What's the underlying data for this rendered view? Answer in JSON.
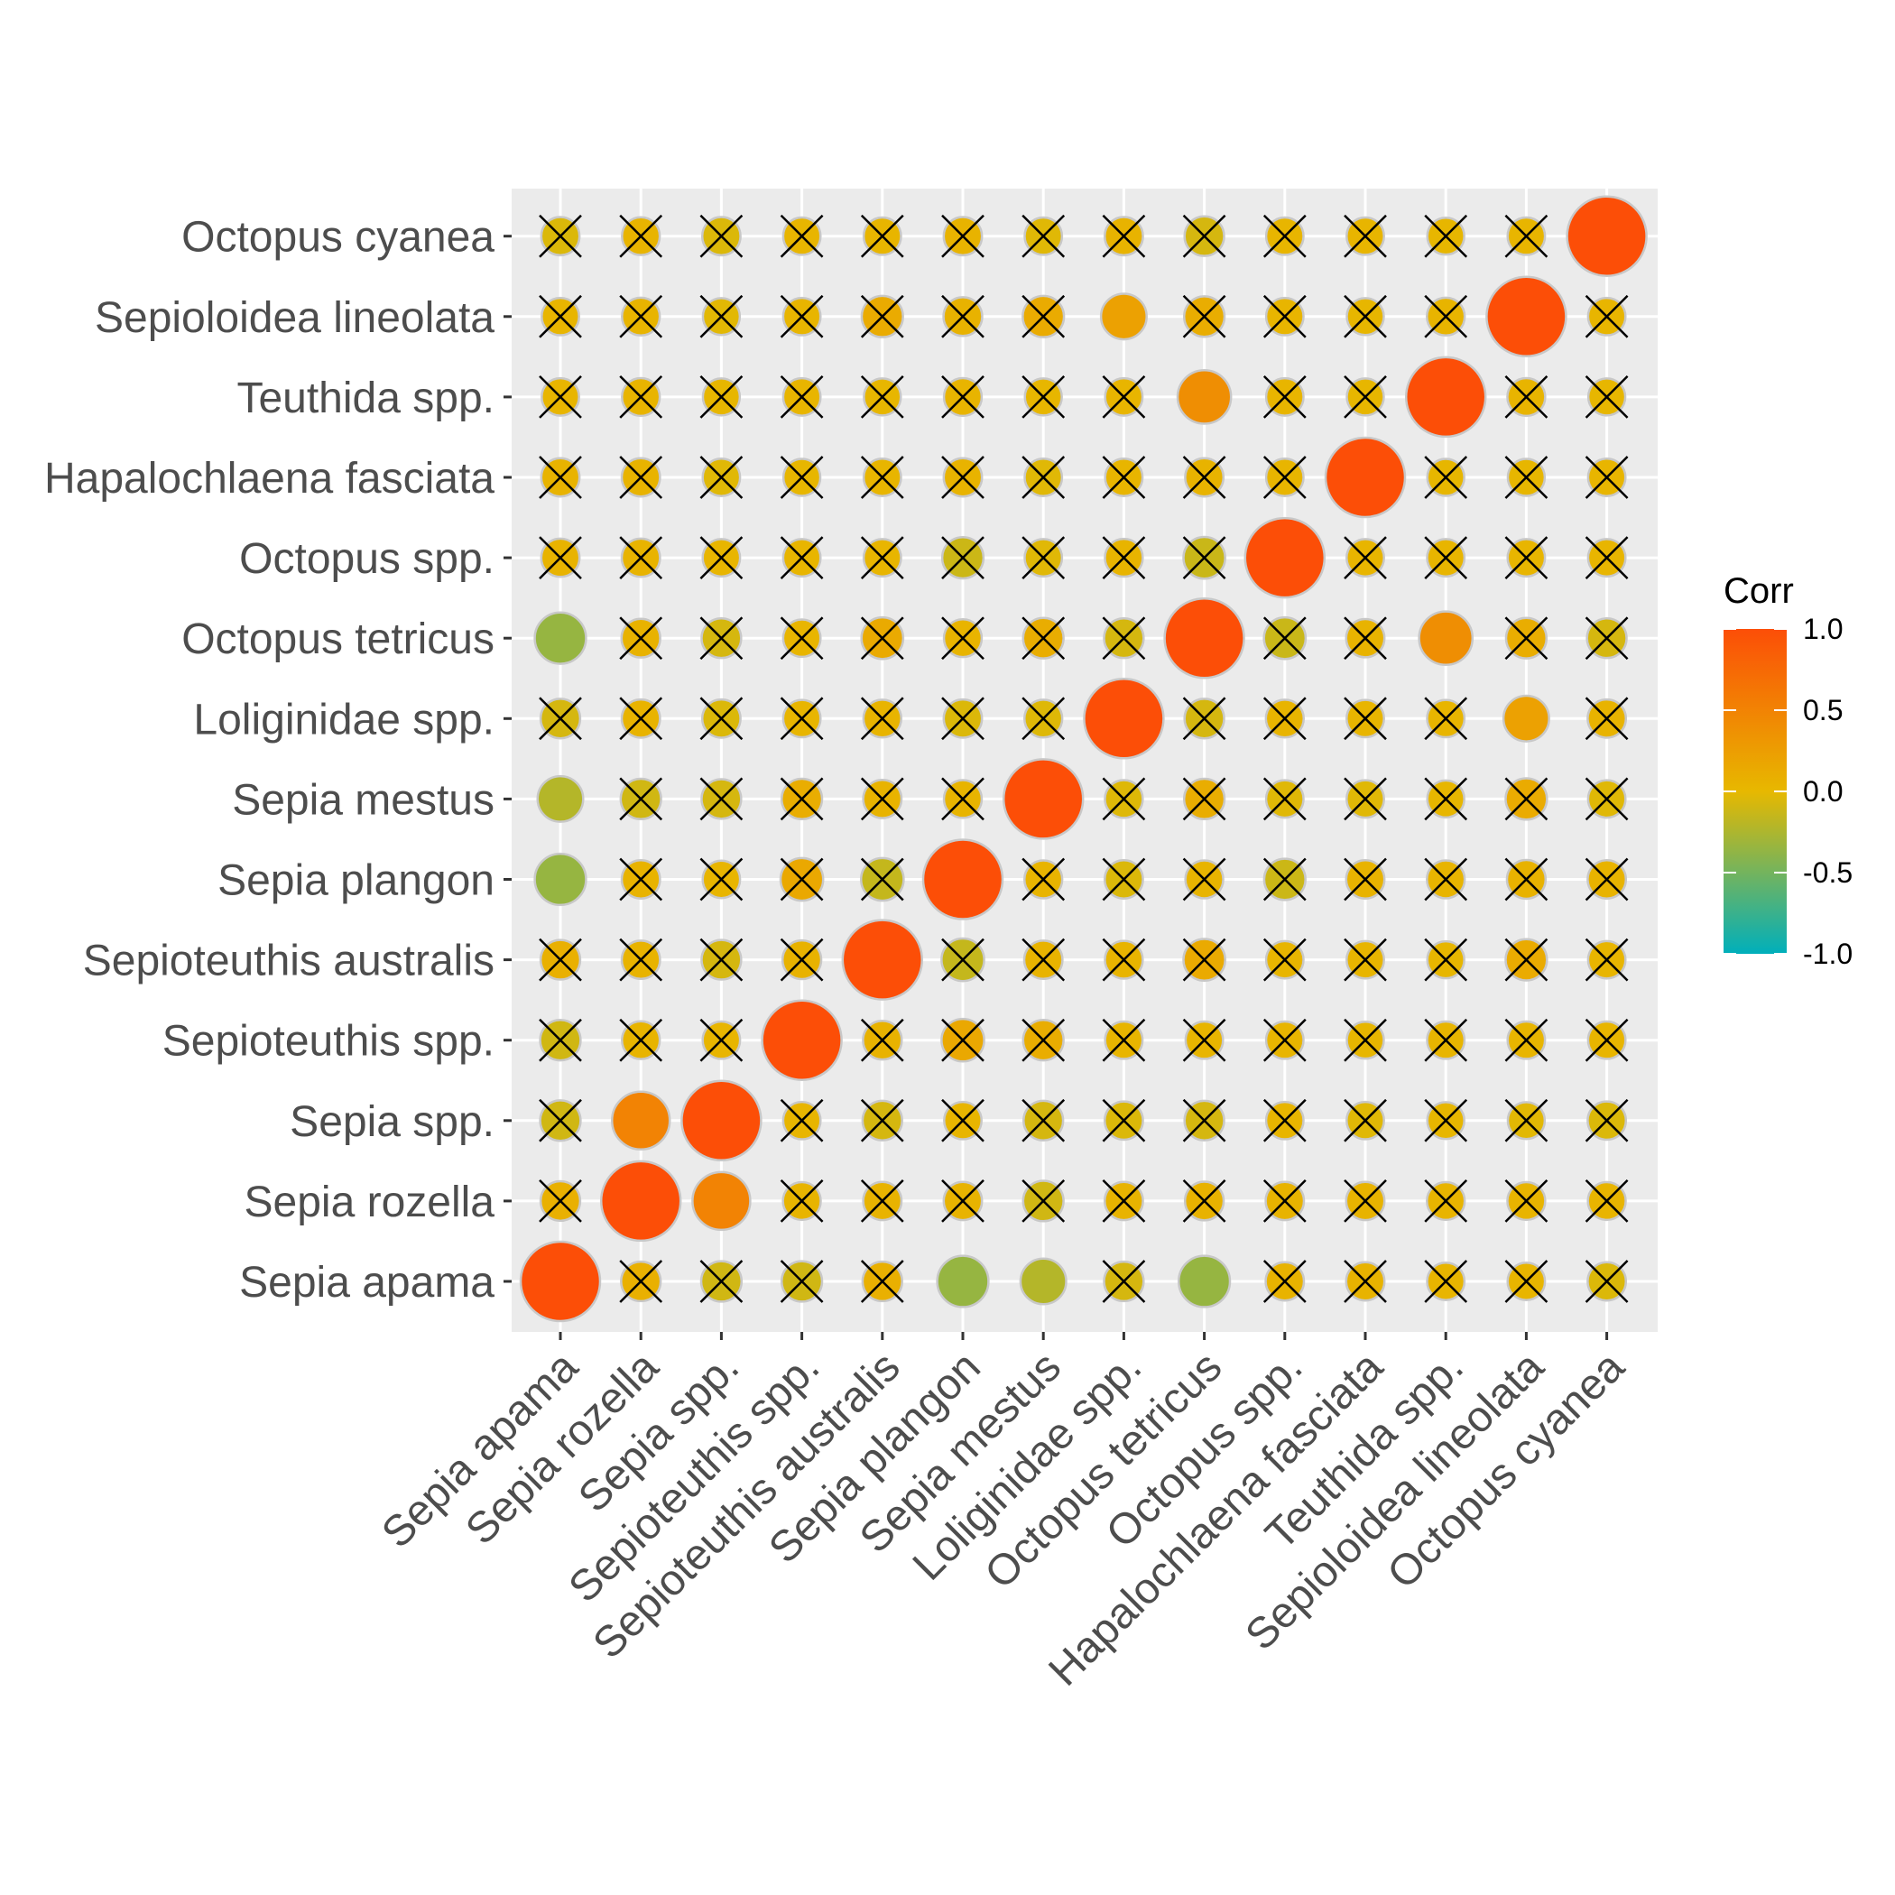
{
  "chart_data": {
    "type": "heatmap",
    "title": "",
    "xlabel": "",
    "ylabel": "",
    "variables": [
      "Sepia apama",
      "Sepia rozella",
      "Sepia spp.",
      "Sepioteuthis spp.",
      "Sepioteuthis australis",
      "Sepia plangon",
      "Sepia mestus",
      "Loliginidae spp.",
      "Octopus tetricus",
      "Octopus spp.",
      "Hapalochlaena fasciata",
      "Teuthida spp.",
      "Sepioloidea lineolata",
      "Octopus cyanea"
    ],
    "matrix": [
      [
        1.0,
        0.08,
        -0.1,
        -0.1,
        0.08,
        -0.35,
        -0.22,
        -0.08,
        -0.35,
        0.05,
        0.05,
        0.03,
        0.03,
        -0.05
      ],
      [
        0.08,
        1.0,
        0.5,
        0.04,
        0.05,
        0.05,
        -0.1,
        0.05,
        0.06,
        0.05,
        0.05,
        0.04,
        0.04,
        0.04
      ],
      [
        -0.1,
        0.5,
        1.0,
        0.03,
        -0.08,
        0.03,
        -0.08,
        -0.05,
        -0.08,
        0.03,
        -0.03,
        0.02,
        -0.02,
        -0.05
      ],
      [
        -0.1,
        0.04,
        0.03,
        1.0,
        0.06,
        0.15,
        0.1,
        0.03,
        0.03,
        0.03,
        0.02,
        0.03,
        0.03,
        0.03
      ],
      [
        0.08,
        0.05,
        -0.08,
        0.06,
        1.0,
        -0.15,
        0.05,
        0.04,
        0.13,
        0.03,
        0.03,
        0.02,
        0.12,
        0.03
      ],
      [
        -0.35,
        0.05,
        0.03,
        0.15,
        -0.15,
        1.0,
        0.04,
        -0.05,
        0.04,
        -0.12,
        0.05,
        0.04,
        0.06,
        0.05
      ],
      [
        -0.22,
        -0.1,
        -0.08,
        0.1,
        0.05,
        0.04,
        1.0,
        -0.04,
        0.1,
        -0.03,
        -0.03,
        0.02,
        0.12,
        -0.03
      ],
      [
        -0.08,
        0.05,
        -0.05,
        0.03,
        0.04,
        -0.05,
        -0.04,
        1.0,
        -0.08,
        0.04,
        0.03,
        0.03,
        0.22,
        0.05
      ],
      [
        -0.35,
        0.06,
        -0.08,
        0.03,
        0.13,
        0.04,
        0.1,
        -0.08,
        1.0,
        -0.13,
        0.05,
        0.4,
        0.1,
        -0.08
      ],
      [
        0.05,
        0.05,
        0.03,
        0.03,
        0.03,
        -0.12,
        -0.03,
        0.04,
        -0.13,
        1.0,
        0.03,
        0.03,
        0.03,
        0.03
      ],
      [
        0.05,
        0.05,
        -0.03,
        0.02,
        0.03,
        0.05,
        -0.03,
        0.03,
        0.05,
        0.03,
        1.0,
        0.02,
        0.02,
        0.03
      ],
      [
        0.03,
        0.04,
        0.02,
        0.03,
        0.02,
        0.04,
        0.02,
        0.03,
        0.4,
        0.03,
        0.02,
        1.0,
        0.04,
        0.02
      ],
      [
        0.03,
        0.04,
        -0.02,
        0.03,
        0.12,
        0.06,
        0.12,
        0.22,
        0.1,
        0.03,
        0.02,
        0.04,
        1.0,
        0.03
      ],
      [
        -0.05,
        0.04,
        -0.05,
        0.03,
        0.03,
        0.05,
        -0.03,
        0.05,
        -0.08,
        0.03,
        0.03,
        0.02,
        0.03,
        1.0
      ]
    ],
    "insignificant": [
      [
        false,
        true,
        true,
        true,
        true,
        false,
        false,
        true,
        false,
        true,
        true,
        true,
        true,
        true
      ],
      [
        true,
        false,
        false,
        true,
        true,
        true,
        true,
        true,
        true,
        true,
        true,
        true,
        true,
        true
      ],
      [
        true,
        false,
        false,
        true,
        true,
        true,
        true,
        true,
        true,
        true,
        true,
        true,
        true,
        true
      ],
      [
        true,
        true,
        true,
        false,
        true,
        true,
        true,
        true,
        true,
        true,
        true,
        true,
        true,
        true
      ],
      [
        true,
        true,
        true,
        true,
        false,
        true,
        true,
        true,
        true,
        true,
        true,
        true,
        true,
        true
      ],
      [
        false,
        true,
        true,
        true,
        true,
        false,
        true,
        true,
        true,
        true,
        true,
        true,
        true,
        true
      ],
      [
        false,
        true,
        true,
        true,
        true,
        true,
        false,
        true,
        true,
        true,
        true,
        true,
        true,
        true
      ],
      [
        true,
        true,
        true,
        true,
        true,
        true,
        true,
        false,
        true,
        true,
        true,
        true,
        false,
        true
      ],
      [
        false,
        true,
        true,
        true,
        true,
        true,
        true,
        true,
        false,
        true,
        true,
        false,
        true,
        true
      ],
      [
        true,
        true,
        true,
        true,
        true,
        true,
        true,
        true,
        true,
        false,
        true,
        true,
        true,
        true
      ],
      [
        true,
        true,
        true,
        true,
        true,
        true,
        true,
        true,
        true,
        true,
        false,
        true,
        true,
        true
      ],
      [
        true,
        true,
        true,
        true,
        true,
        true,
        true,
        true,
        false,
        true,
        true,
        false,
        true,
        true
      ],
      [
        true,
        true,
        true,
        true,
        true,
        true,
        true,
        false,
        true,
        true,
        true,
        true,
        false,
        true
      ],
      [
        true,
        true,
        true,
        true,
        true,
        true,
        true,
        true,
        true,
        true,
        true,
        true,
        true,
        false
      ]
    ],
    "colorscale": {
      "low": "#00AFBB",
      "mid": "#E7B800",
      "high": "#FC4E07",
      "range": [
        -1,
        1
      ]
    },
    "legend": {
      "title": "Corr",
      "position": "right",
      "ticks": [
        "1.0",
        "0.5",
        "0.0",
        "-0.5",
        "-1.0"
      ]
    },
    "panel_background": "#ebebeb",
    "grid": true
  }
}
